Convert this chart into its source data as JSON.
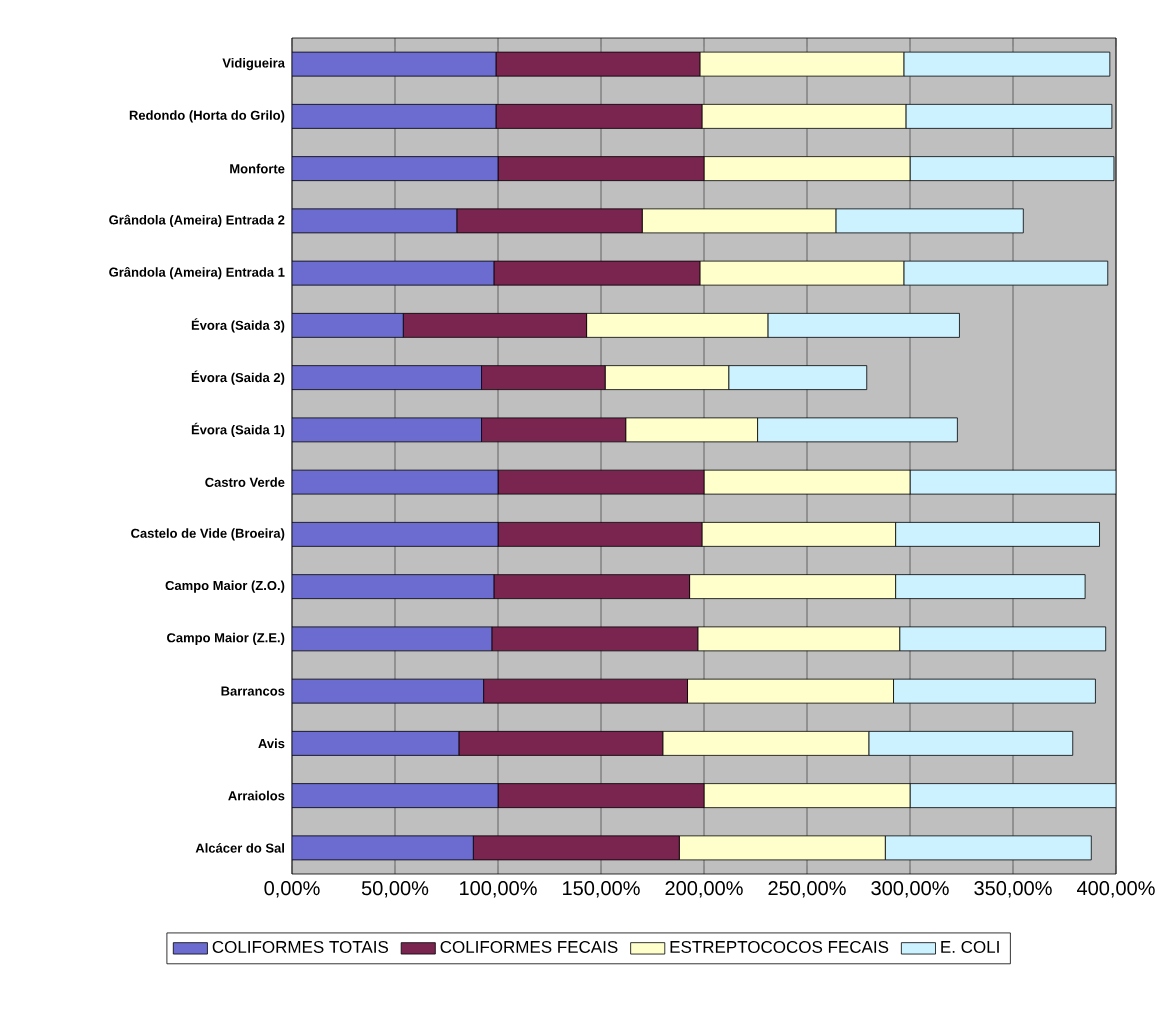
{
  "chart_data": {
    "type": "bar",
    "orientation": "horizontal",
    "stacked": true,
    "grid": "x",
    "legend": "bottom",
    "categories": [
      "Vidigueira",
      "Redondo (Horta do Grilo)",
      "Monforte",
      "Grândola (Ameira) Entrada 2",
      "Grândola (Ameira) Entrada 1",
      "Évora (Saida 3)",
      "Évora (Saida 2)",
      "Évora (Saida 1)",
      "Castro Verde",
      "Castelo de Vide (Broeira)",
      "Campo Maior (Z.O.)",
      "Campo Maior (Z.E.)",
      "Barrancos",
      "Avis",
      "Arraiolos",
      "Alcácer do Sal"
    ],
    "series": [
      {
        "name": "COLIFORMES TOTAIS",
        "color": "#6b6bd0",
        "values": [
          99,
          99,
          100,
          80,
          98,
          54,
          92,
          92,
          100,
          100,
          98,
          97,
          93,
          81,
          100,
          88
        ]
      },
      {
        "name": "COLIFORMES FECAIS",
        "color": "#7a2450",
        "values": [
          99,
          100,
          100,
          90,
          100,
          89,
          60,
          70,
          100,
          99,
          95,
          100,
          99,
          99,
          100,
          100
        ]
      },
      {
        "name": "ESTREPTOCOCOS FECAIS",
        "color": "#ffffcc",
        "values": [
          99,
          99,
          100,
          94,
          99,
          88,
          60,
          64,
          100,
          94,
          100,
          98,
          100,
          100,
          100,
          100
        ]
      },
      {
        "name": "E. COLI",
        "color": "#ccf2ff",
        "values": [
          100,
          100,
          99,
          91,
          99,
          93,
          67,
          97,
          100,
          99,
          92,
          100,
          98,
          99,
          100,
          100
        ]
      }
    ],
    "xlim": [
      0,
      400
    ],
    "xticks": [
      {
        "value": 0,
        "label": "0,00%"
      },
      {
        "value": 50,
        "label": "50,00%"
      },
      {
        "value": 100,
        "label": "100,00%"
      },
      {
        "value": 150,
        "label": "150,00%"
      },
      {
        "value": 200,
        "label": "200,00%"
      },
      {
        "value": 250,
        "label": "250,00%"
      },
      {
        "value": 300,
        "label": "300,00%"
      },
      {
        "value": 350,
        "label": "350,00%"
      },
      {
        "value": 400,
        "label": "400,00%"
      }
    ]
  }
}
